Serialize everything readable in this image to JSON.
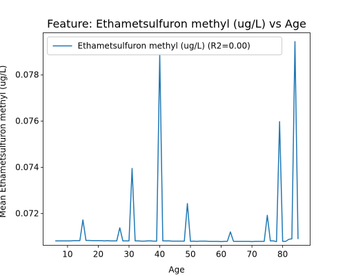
{
  "chart_data": {
    "type": "line",
    "title": "Feature: Ethametsulfuron methyl (ug/L) vs Age",
    "xlabel": "Age",
    "ylabel": "Mean Ethametsulfuron methyl (ug/L)",
    "xlim": [
      2.05,
      88.95
    ],
    "ylim": [
      0.07062,
      0.07983
    ],
    "x_ticks": [
      10,
      20,
      30,
      40,
      50,
      60,
      70,
      80
    ],
    "y_ticks": [
      0.072,
      0.074,
      0.076,
      0.078
    ],
    "y_tick_labels": [
      "0.072",
      "0.074",
      "0.076",
      "0.078"
    ],
    "grid": false,
    "legend_position": "top-left",
    "series": [
      {
        "name": "Ethametsulfuron methyl (ug/L) (R2=0.00)",
        "color": "#1f77b4",
        "x": [
          6,
          7,
          8,
          9,
          10,
          11,
          12,
          13,
          14,
          15,
          16,
          17,
          18,
          19,
          20,
          21,
          22,
          23,
          24,
          25,
          26,
          27,
          28,
          29,
          30,
          31,
          32,
          33,
          34,
          35,
          36,
          37,
          38,
          39,
          40,
          41,
          42,
          43,
          44,
          45,
          46,
          47,
          48,
          49,
          50,
          51,
          52,
          53,
          54,
          55,
          56,
          57,
          58,
          59,
          60,
          61,
          62,
          63,
          64,
          65,
          66,
          67,
          68,
          69,
          70,
          71,
          72,
          73,
          74,
          75,
          76,
          77,
          78,
          79,
          80,
          81,
          82,
          83,
          84,
          85
        ],
        "y": [
          0.07081,
          0.07081,
          0.07081,
          0.07081,
          0.07081,
          0.07081,
          0.07082,
          0.07082,
          0.07082,
          0.07172,
          0.07083,
          0.07083,
          0.07082,
          0.07082,
          0.07082,
          0.07082,
          0.07081,
          0.07082,
          0.07081,
          0.07081,
          0.07081,
          0.07138,
          0.07081,
          0.07081,
          0.07081,
          0.07395,
          0.07081,
          0.07081,
          0.0708,
          0.0708,
          0.07081,
          0.07081,
          0.0708,
          0.0708,
          0.0789,
          0.07081,
          0.07081,
          0.07081,
          0.0708,
          0.0708,
          0.0708,
          0.0708,
          0.0708,
          0.07243,
          0.07079,
          0.0708,
          0.07079,
          0.0708,
          0.0708,
          0.0708,
          0.07079,
          0.07079,
          0.07079,
          0.07079,
          0.07078,
          0.07079,
          0.07079,
          0.0712,
          0.07079,
          0.07079,
          0.07079,
          0.07079,
          0.07079,
          0.07079,
          0.07078,
          0.07079,
          0.07079,
          0.07079,
          0.07079,
          0.07192,
          0.07081,
          0.07081,
          0.07078,
          0.07598,
          0.07079,
          0.07079,
          0.07088,
          0.0709,
          0.07945,
          0.07089
        ]
      }
    ]
  }
}
